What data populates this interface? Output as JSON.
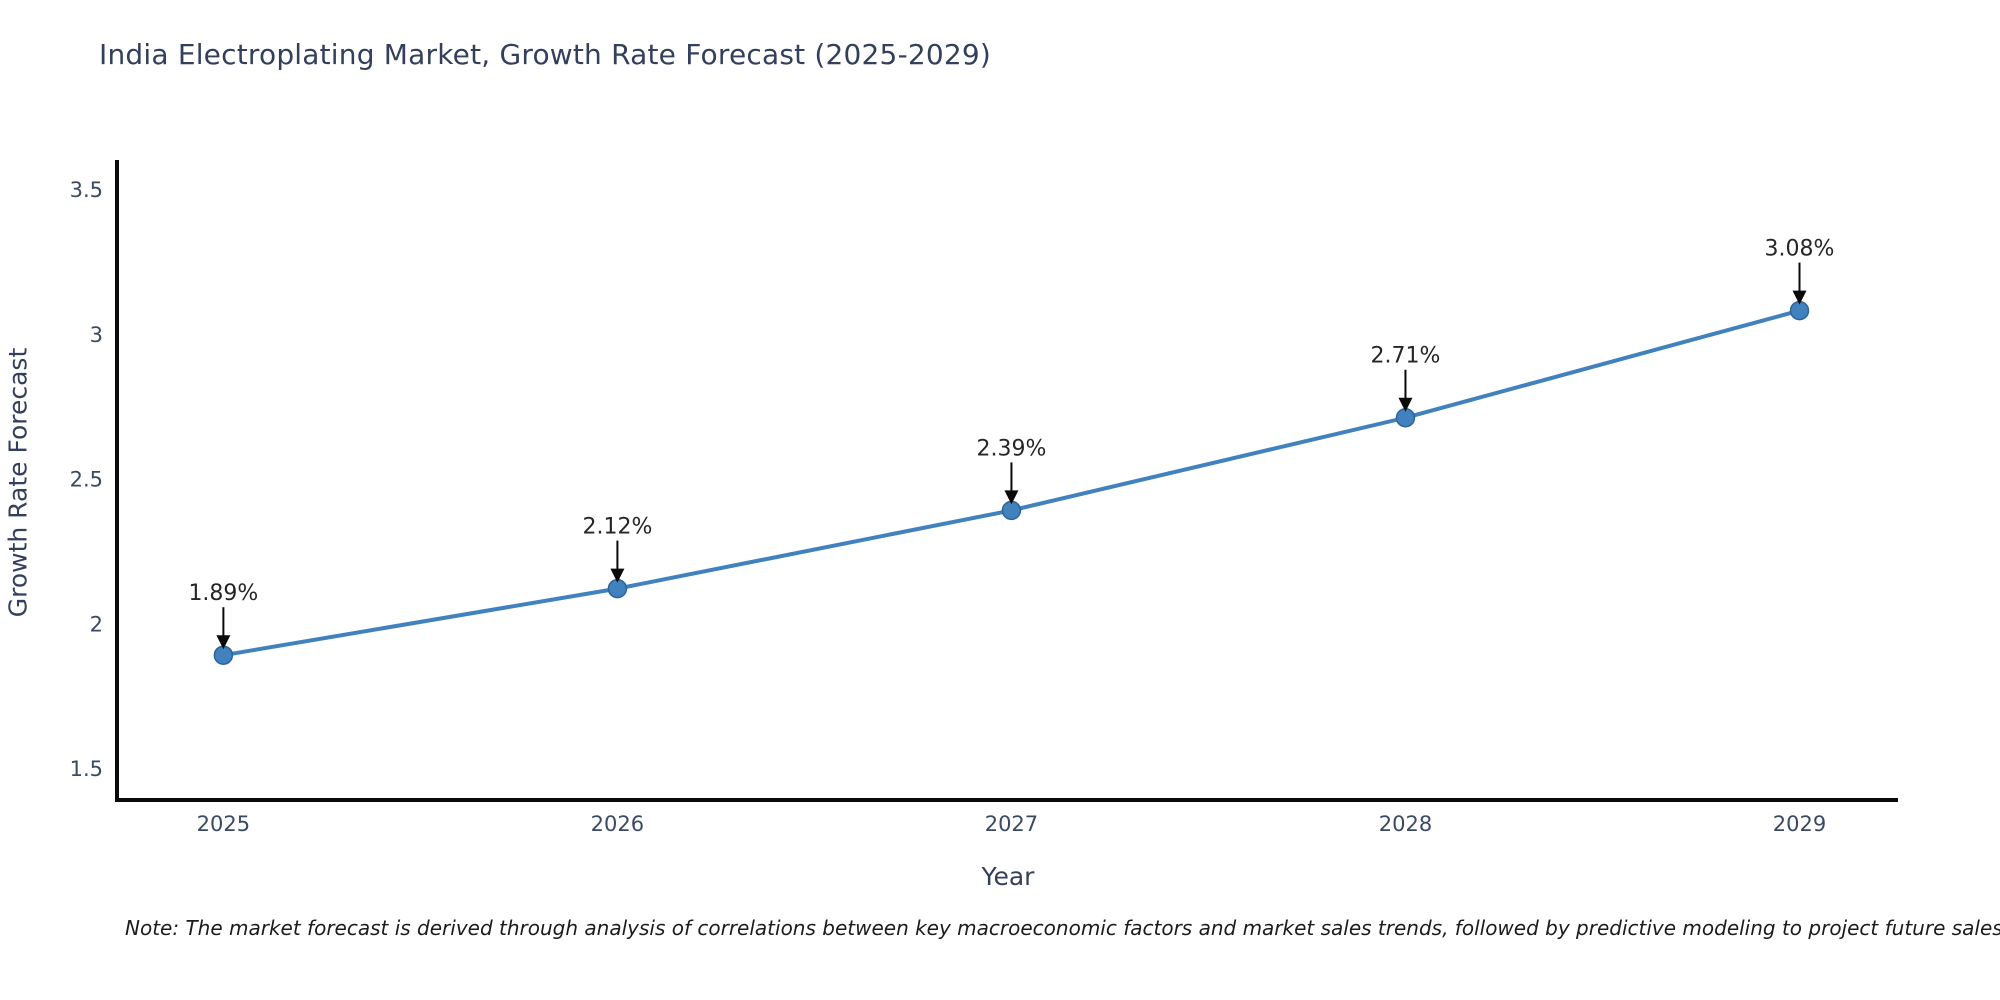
{
  "header": {
    "title": "India Electroplating Market, Growth Rate Forecast (2025-2029)"
  },
  "chart_data": {
    "type": "line",
    "title": "India Electroplating Market, Growth Rate Forecast (2025-2029)",
    "xlabel": "Year",
    "ylabel": "Growth Rate Forecast",
    "categories": [
      2025,
      2026,
      2027,
      2028,
      2029
    ],
    "values": [
      1.89,
      2.12,
      2.39,
      2.71,
      3.08
    ],
    "point_labels": [
      "1.89%",
      "2.12%",
      "2.39%",
      "2.71%",
      "3.08%"
    ],
    "yticks": [
      3.5,
      3,
      2.5,
      2,
      1.5
    ],
    "xlim": [
      2024.73,
      2029.25
    ],
    "ylim": [
      1.39,
      3.6
    ],
    "grid": false,
    "legend": "none",
    "colors": {
      "line": "#4181bd",
      "marker_fill": "#4181bd",
      "marker_edge": "#2e6398",
      "axis_spine": "#0a0a0a",
      "tick_label": "#3b4a63",
      "annotation_text": "#262626",
      "annotation_arrow": "#0a0a0a",
      "title_text": "#333f5c"
    }
  },
  "footer": {
    "note": "Note: The market forecast is derived through analysis of correlations between key macroeconomic factors and market sales trends, followed by predictive modeling to project future sales"
  }
}
